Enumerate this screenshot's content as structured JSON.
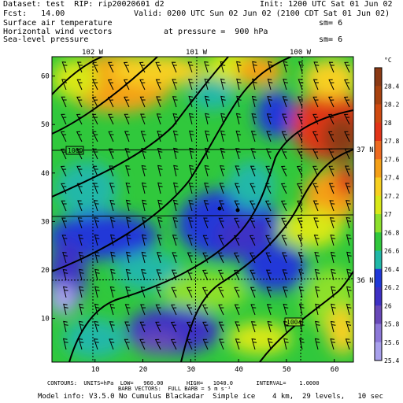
{
  "header": {
    "dataset": "Dataset: test  RIP: rip20020601 d2",
    "init": "Init: 1200 UTC Sat 01 Jun 02",
    "fcst": "Fcst:   14.00",
    "valid": "Valid: 0200 UTC Sun 02 Jun 02 (2100 CDT Sat 01 Jun 02)",
    "field1": "Surface air temperature",
    "field2": "Horizontal wind vectors",
    "field3": "Sea-level pressure",
    "pressure_level": "at pressure =  900 hPa",
    "sm1": "sm= 6",
    "sm2": "sm= 6"
  },
  "map": {
    "lon_labels": [
      "102 W",
      "101 W",
      "100 W"
    ],
    "lat_labels": [
      "37 N",
      "36 N"
    ],
    "x_ticks": [
      "10",
      "20",
      "30",
      "40",
      "50",
      "60"
    ],
    "y_ticks": [
      "10",
      "20",
      "30",
      "40",
      "50",
      "60"
    ],
    "contour_labels": [
      "1000",
      "1004"
    ],
    "colorbar_unit": "°C",
    "colorbar_labels": [
      "28.4",
      "28.2",
      "28",
      "27.8",
      "27.6",
      "27.4",
      "27.2",
      "27",
      "26.8",
      "26.6",
      "26.4",
      "26.2",
      "26",
      "25.8",
      "25.6",
      "25.4"
    ],
    "colorbar_colors": [
      "#8b3a14",
      "#a8420f",
      "#d04a10",
      "#e23418",
      "#ee6a20",
      "#f4a018",
      "#f7d020",
      "#d8e818",
      "#8ce02c",
      "#30c83c",
      "#20b8a8",
      "#2038d8",
      "#3e30c4",
      "#6848b8",
      "#8c78d8",
      "#a8a0ec"
    ]
  },
  "footer": {
    "contours": "CONTOURS:  UNITS=hPa  LOW=   960.00       HIGH=   1040.0       INTERVAL=    1.0000",
    "barbs": "BARB VECTORS:  FULL BARB = 5 m s⁻¹",
    "model": "Model info: V3.5.0 No Cumulus Blackadar  Simple ice    4 km,  29 levels,   10 sec"
  }
}
